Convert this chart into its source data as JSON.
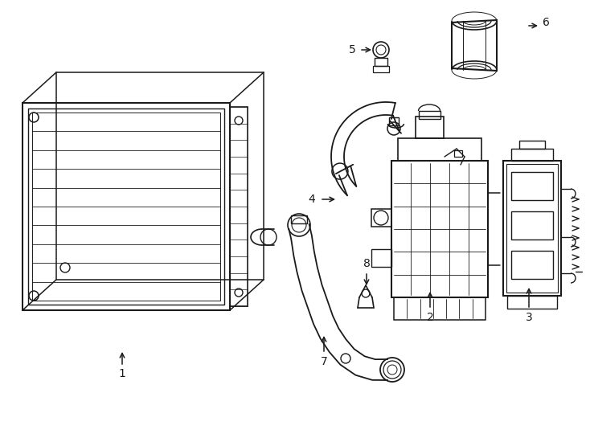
{
  "bg": "#ffffff",
  "lc": "#1a1a1a",
  "lw": 1.3,
  "fs": 10,
  "fig_w": 7.34,
  "fig_h": 5.4,
  "dpi": 100
}
